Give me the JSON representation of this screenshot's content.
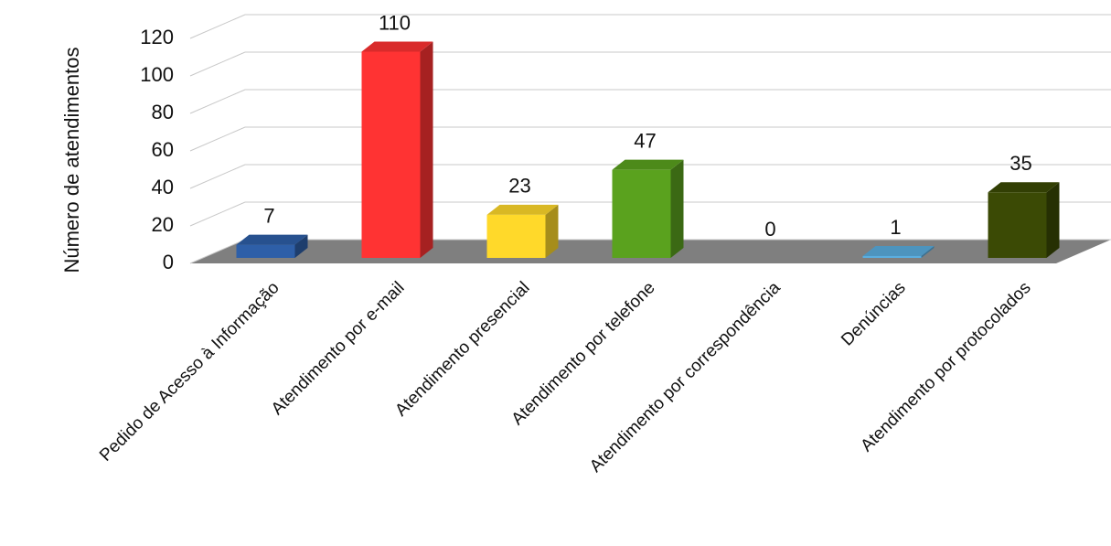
{
  "chart_data": {
    "type": "bar3d",
    "y_axis_label": "Número de atendimentos",
    "categories": [
      "Pedido de Acesso à Informação",
      "Atendimento por e-mail",
      "Atendimento presencial",
      "Atendimento por telefone",
      "Atendimento por correspondência",
      "Denúncias",
      "Atendimento por protocolados"
    ],
    "values": [
      7,
      110,
      23,
      47,
      0,
      1,
      35
    ],
    "colors": [
      "#2e5fa8",
      "#ff3333",
      "#ffd92a",
      "#5aa21e",
      "#8e44ad",
      "#5aaee0",
      "#3b4a05"
    ],
    "ylim": [
      0,
      120
    ],
    "yticks": [
      0,
      20,
      40,
      60,
      80,
      100,
      120
    ],
    "grid": true
  }
}
